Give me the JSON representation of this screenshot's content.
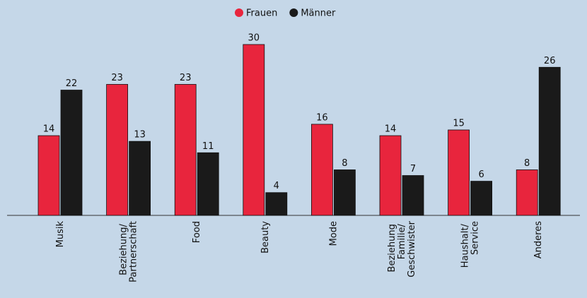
{
  "chart_data": {
    "type": "bar",
    "categories": [
      "Musik",
      "Beziehung/ Partnerschaft",
      "Food",
      "Beauty",
      "Mode",
      "Beziehung Familie/ Geschwister",
      "Haushalt/ Service",
      "Anderes"
    ],
    "series": [
      {
        "name": "Frauen",
        "color": "#e8253d",
        "values": [
          14,
          23,
          23,
          30,
          16,
          14,
          15,
          8
        ]
      },
      {
        "name": "Männer",
        "color": "#1a1a1a",
        "values": [
          22,
          13,
          11,
          4,
          8,
          7,
          6,
          26
        ]
      }
    ],
    "ylim": [
      0,
      30
    ],
    "legend": "top"
  }
}
